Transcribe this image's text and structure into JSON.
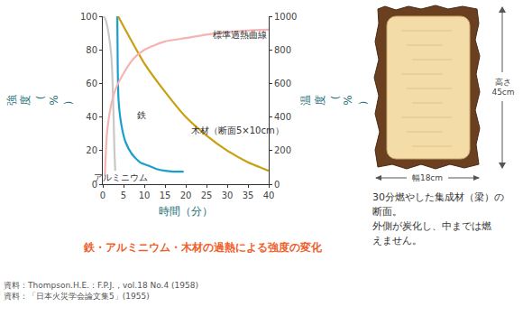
{
  "chart_data": {
    "type": "line",
    "title": "鉄・アルミニウム・木材の過熱による強度の変化",
    "x_label": "時間（分）",
    "y_label": "強度（%）",
    "y2_label": "温度（%）",
    "xlim": [
      0,
      40
    ],
    "xticks": [
      0,
      5,
      10,
      15,
      20,
      25,
      30,
      35,
      40
    ],
    "ylim": [
      0,
      100
    ],
    "yticks": [
      0,
      20,
      40,
      60,
      80,
      100
    ],
    "y2lim": [
      0,
      1000
    ],
    "y2ticks": [
      0,
      200,
      400,
      600,
      800,
      1000
    ],
    "grid": false,
    "series": [
      {
        "name": "アルミニウム",
        "color": "#c8c8c8",
        "x": [
          0,
          0.5,
          1,
          1.5,
          2,
          2.3,
          2.6,
          2.8,
          3
        ],
        "values": [
          100,
          99,
          95,
          88,
          78,
          65,
          40,
          20,
          8
        ]
      },
      {
        "name": "鉄",
        "color": "#1a9fcc",
        "x": [
          3.5,
          3.6,
          3.8,
          4.5,
          5.5,
          7,
          9,
          11,
          13,
          15,
          17,
          19.5
        ],
        "values": [
          100,
          70,
          50,
          35,
          25,
          18,
          13,
          11,
          9,
          8,
          7.5,
          7.5
        ]
      },
      {
        "name": "木材（断面5×10cm）",
        "color": "#c9a012",
        "x": [
          3.7,
          5,
          10,
          15,
          20,
          25,
          30,
          35,
          40
        ],
        "values": [
          100,
          94,
          72,
          55,
          40,
          29,
          20,
          13,
          8
        ]
      },
      {
        "name": "標準過熱曲線",
        "color": "#f5b3b3",
        "axis": "y2",
        "x": [
          0.5,
          1,
          2,
          3,
          5,
          7.5,
          10,
          15,
          20,
          25,
          30,
          35,
          40
        ],
        "values": [
          50,
          300,
          470,
          560,
          660,
          750,
          800,
          850,
          870,
          890,
          905,
          915,
          920
        ]
      }
    ]
  },
  "sources": [
    "資料：Thompson.H.E.：F.P.J.，vol.18 No.4 (1958)",
    "資料：「日本火災学会論文集5」(1955)"
  ],
  "illustration": {
    "height_label": "高さ45cm",
    "width_label": "幅18cm",
    "caption": [
      "30分燃やした集成材（梁）の",
      "断面。",
      "外側が炭化し、中までは燃",
      "えません。"
    ]
  }
}
